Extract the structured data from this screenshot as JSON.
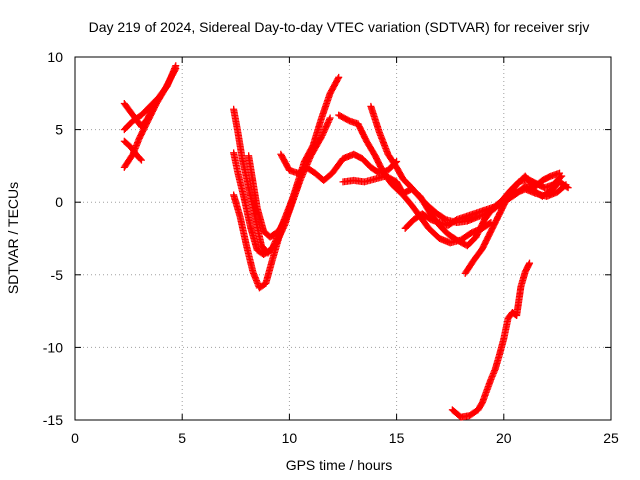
{
  "chart_data": {
    "type": "scatter",
    "title": "Day 219 of 2024, Sidereal Day-to-day VTEC variation (SDTVAR) for receiver srjv",
    "xlabel": "GPS time / hours",
    "ylabel": "SDTVAR / TECUs",
    "xlim": [
      0,
      25
    ],
    "ylim": [
      -15,
      10
    ],
    "x_ticks": [
      "0",
      "5",
      "10",
      "15",
      "20",
      "25"
    ],
    "y_ticks": [
      "10",
      "5",
      "0",
      "-5",
      "-10",
      "-15"
    ],
    "grid": true,
    "marker": "+",
    "series_color": "#ff0000",
    "series": [
      {
        "points": [
          [
            2.3,
            2.4
          ],
          [
            2.7,
            3.3
          ],
          [
            3.0,
            4.4
          ],
          [
            3.4,
            5.6
          ],
          [
            3.8,
            6.8
          ],
          [
            4.2,
            7.8
          ],
          [
            4.7,
            9.2
          ]
        ]
      },
      {
        "points": [
          [
            2.3,
            5.0
          ],
          [
            2.7,
            5.6
          ],
          [
            3.1,
            6.0
          ],
          [
            3.5,
            6.6
          ],
          [
            3.9,
            7.2
          ],
          [
            4.3,
            8.0
          ],
          [
            4.7,
            9.4
          ]
        ]
      },
      {
        "points": [
          [
            2.3,
            6.8
          ],
          [
            2.6,
            6.2
          ],
          [
            2.9,
            5.6
          ],
          [
            3.1,
            5.2
          ],
          [
            3.4,
            5.8
          ],
          [
            3.6,
            6.4
          ]
        ]
      },
      {
        "points": [
          [
            2.3,
            4.2
          ],
          [
            2.6,
            3.8
          ],
          [
            2.9,
            3.2
          ],
          [
            3.1,
            2.9
          ]
        ]
      },
      {
        "points": [
          [
            7.4,
            6.4
          ],
          [
            7.6,
            4.8
          ],
          [
            7.8,
            3.0
          ],
          [
            8.1,
            1.0
          ],
          [
            8.4,
            -1.0
          ],
          [
            8.7,
            -3.0
          ],
          [
            9.0,
            -3.5
          ],
          [
            9.4,
            -2.8
          ],
          [
            9.8,
            -1.5
          ],
          [
            10.2,
            0.5
          ],
          [
            10.7,
            2.8
          ],
          [
            11.1,
            3.9
          ],
          [
            11.5,
            5.8
          ],
          [
            11.9,
            7.5
          ],
          [
            12.3,
            8.6
          ]
        ]
      },
      {
        "points": [
          [
            7.4,
            0.5
          ],
          [
            7.7,
            -1.0
          ],
          [
            8.0,
            -3.0
          ],
          [
            8.3,
            -4.8
          ],
          [
            8.6,
            -5.9
          ],
          [
            8.9,
            -5.6
          ],
          [
            9.2,
            -4.0
          ],
          [
            9.6,
            -2.0
          ],
          [
            10.0,
            -0.6
          ],
          [
            10.5,
            1.5
          ],
          [
            11.0,
            3.2
          ],
          [
            11.5,
            4.5
          ],
          [
            11.9,
            5.8
          ]
        ]
      },
      {
        "points": [
          [
            7.4,
            3.4
          ],
          [
            7.6,
            2.0
          ],
          [
            7.9,
            0.2
          ],
          [
            8.2,
            -1.8
          ],
          [
            8.5,
            -3.3
          ],
          [
            8.8,
            -3.6
          ],
          [
            9.2,
            -3.2
          ],
          [
            9.6,
            -1.8
          ],
          [
            10.0,
            -0.3
          ],
          [
            10.4,
            1.2
          ]
        ]
      },
      {
        "points": [
          [
            8.1,
            3.2
          ],
          [
            8.3,
            1.4
          ],
          [
            8.5,
            -0.4
          ],
          [
            8.8,
            -2.0
          ],
          [
            9.1,
            -2.4
          ],
          [
            9.5,
            -2.0
          ],
          [
            9.8,
            -1.2
          ]
        ]
      },
      {
        "points": [
          [
            9.6,
            3.3
          ],
          [
            10.0,
            2.2
          ],
          [
            10.4,
            2.0
          ],
          [
            10.8,
            2.4
          ],
          [
            11.2,
            2.0
          ],
          [
            11.6,
            1.5
          ],
          [
            12.0,
            2.0
          ],
          [
            12.5,
            3.0
          ],
          [
            13.0,
            3.3
          ],
          [
            13.4,
            3.0
          ],
          [
            13.8,
            2.4
          ],
          [
            14.2,
            2.0
          ],
          [
            14.6,
            2.2
          ],
          [
            15.0,
            2.8
          ]
        ]
      },
      {
        "points": [
          [
            12.3,
            6.0
          ],
          [
            12.8,
            5.6
          ],
          [
            13.2,
            5.4
          ],
          [
            13.6,
            4.2
          ],
          [
            14.0,
            3.2
          ],
          [
            14.4,
            2.0
          ],
          [
            14.8,
            1.2
          ],
          [
            15.3,
            0.5
          ],
          [
            15.7,
            -0.2
          ],
          [
            16.1,
            -1.0
          ],
          [
            16.5,
            -1.8
          ],
          [
            17.0,
            -2.5
          ],
          [
            17.5,
            -2.8
          ],
          [
            18.0,
            -2.6
          ],
          [
            18.5,
            -2.1
          ],
          [
            19.0,
            -1.8
          ],
          [
            19.4,
            -1.4
          ]
        ]
      },
      {
        "points": [
          [
            13.8,
            6.6
          ],
          [
            14.2,
            4.8
          ],
          [
            14.6,
            3.3
          ],
          [
            15.0,
            2.4
          ],
          [
            15.3,
            1.6
          ],
          [
            15.7,
            1.0
          ],
          [
            16.1,
            0.3
          ],
          [
            16.5,
            -0.3
          ],
          [
            16.9,
            -0.8
          ],
          [
            17.3,
            -1.2
          ],
          [
            17.8,
            -1.4
          ],
          [
            18.3,
            -1.3
          ],
          [
            18.8,
            -1.0
          ],
          [
            19.2,
            -0.8
          ],
          [
            19.6,
            -0.4
          ],
          [
            20.0,
            0.2
          ],
          [
            20.5,
            0.6
          ],
          [
            21.0,
            0.9
          ],
          [
            21.5,
            0.6
          ],
          [
            22.0,
            0.4
          ],
          [
            22.5,
            0.7
          ],
          [
            22.9,
            1.2
          ]
        ]
      },
      {
        "points": [
          [
            12.5,
            1.4
          ],
          [
            13.0,
            1.5
          ],
          [
            13.5,
            1.4
          ],
          [
            14.0,
            1.6
          ],
          [
            14.5,
            1.8
          ],
          [
            15.0,
            1.4
          ],
          [
            15.3,
            0.6
          ],
          [
            15.7,
            0.9
          ],
          [
            16.1,
            0.4
          ],
          [
            16.5,
            -0.6
          ],
          [
            17.0,
            -1.6
          ],
          [
            17.4,
            -2.2
          ],
          [
            17.8,
            -2.6
          ],
          [
            18.3,
            -3.0
          ],
          [
            18.7,
            -2.4
          ],
          [
            19.1,
            -1.2
          ],
          [
            19.5,
            -0.4
          ],
          [
            19.9,
            0.1
          ],
          [
            20.3,
            0.8
          ],
          [
            20.7,
            1.4
          ],
          [
            21.1,
            1.6
          ],
          [
            21.5,
            1.3
          ],
          [
            21.9,
            1.0
          ],
          [
            22.3,
            1.2
          ],
          [
            22.7,
            1.8
          ]
        ]
      },
      {
        "points": [
          [
            15.4,
            -1.8
          ],
          [
            15.8,
            -1.2
          ],
          [
            16.2,
            -0.8
          ],
          [
            16.6,
            -1.2
          ],
          [
            17.0,
            -1.4
          ],
          [
            17.4,
            -1.6
          ],
          [
            17.8,
            -1.2
          ],
          [
            18.2,
            -1.0
          ],
          [
            18.6,
            -0.8
          ],
          [
            19.0,
            -0.6
          ],
          [
            19.4,
            -0.4
          ],
          [
            19.8,
            -0.2
          ],
          [
            20.2,
            0.2
          ],
          [
            20.6,
            0.6
          ],
          [
            21.0,
            1.1
          ],
          [
            21.4,
            0.8
          ],
          [
            21.8,
            0.4
          ],
          [
            22.2,
            0.8
          ],
          [
            22.6,
            1.4
          ],
          [
            23.0,
            1.0
          ]
        ]
      },
      {
        "points": [
          [
            18.2,
            -4.9
          ],
          [
            18.6,
            -4.0
          ],
          [
            19.0,
            -3.2
          ],
          [
            19.4,
            -2.0
          ],
          [
            19.8,
            -0.8
          ],
          [
            20.2,
            0.4
          ],
          [
            20.6,
            1.2
          ],
          [
            21.0,
            1.8
          ],
          [
            21.4,
            1.0
          ],
          [
            21.8,
            1.5
          ],
          [
            22.2,
            1.8
          ],
          [
            22.6,
            2.0
          ]
        ]
      },
      {
        "points": [
          [
            17.6,
            -14.3
          ],
          [
            18.0,
            -14.8
          ],
          [
            18.4,
            -14.7
          ],
          [
            18.8,
            -14.3
          ],
          [
            19.0,
            -13.8
          ],
          [
            19.2,
            -13.0
          ],
          [
            19.4,
            -12.2
          ],
          [
            19.6,
            -11.5
          ],
          [
            19.8,
            -10.5
          ],
          [
            20.0,
            -9.4
          ],
          [
            20.2,
            -8.0
          ],
          [
            20.4,
            -7.6
          ],
          [
            20.6,
            -7.8
          ],
          [
            20.7,
            -6.8
          ],
          [
            20.8,
            -5.8
          ],
          [
            21.0,
            -4.8
          ],
          [
            21.2,
            -4.2
          ]
        ]
      }
    ]
  }
}
